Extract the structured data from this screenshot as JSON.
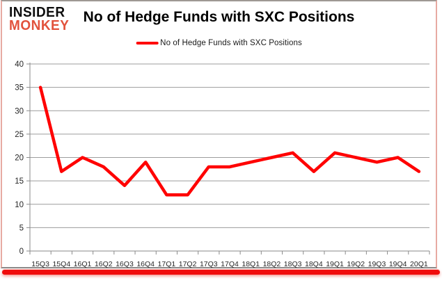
{
  "logo": {
    "line1": "INSIDER",
    "line2": "MONKEY"
  },
  "header": {
    "title": "No of Hedge Funds with SXC Positions"
  },
  "legend": {
    "label": "No of Hedge Funds with SXC Positions"
  },
  "colors": {
    "series_line": "#ff0000",
    "logo_black": "#0d0d0d",
    "logo_red": "#e2523c",
    "gridline": "#9c9c9c",
    "axis": "#8a8a8a",
    "tick_text": "#262626",
    "border_red": "#f00c0c"
  },
  "chart_data": {
    "type": "line",
    "title": "No of Hedge Funds with SXC Positions",
    "categories": [
      "15Q3",
      "15Q4",
      "16Q1",
      "16Q2",
      "16Q3",
      "16Q4",
      "17Q1",
      "17Q2",
      "17Q3",
      "17Q4",
      "18Q1",
      "18Q2",
      "18Q3",
      "18Q4",
      "19Q1",
      "19Q2",
      "19Q3",
      "19Q4",
      "20Q1"
    ],
    "series": [
      {
        "name": "No of Hedge Funds with SXC Positions",
        "color": "#ff0000",
        "values": [
          35,
          17,
          20,
          18,
          14,
          19,
          12,
          12,
          18,
          18,
          19,
          20,
          21,
          17,
          21,
          20,
          19,
          20,
          17
        ]
      }
    ],
    "xlabel": "",
    "ylabel": "",
    "ylim": [
      0,
      40
    ],
    "y_ticks": [
      0,
      5,
      10,
      15,
      20,
      25,
      30,
      35,
      40
    ],
    "grid": true,
    "legend_position": "top-center"
  }
}
